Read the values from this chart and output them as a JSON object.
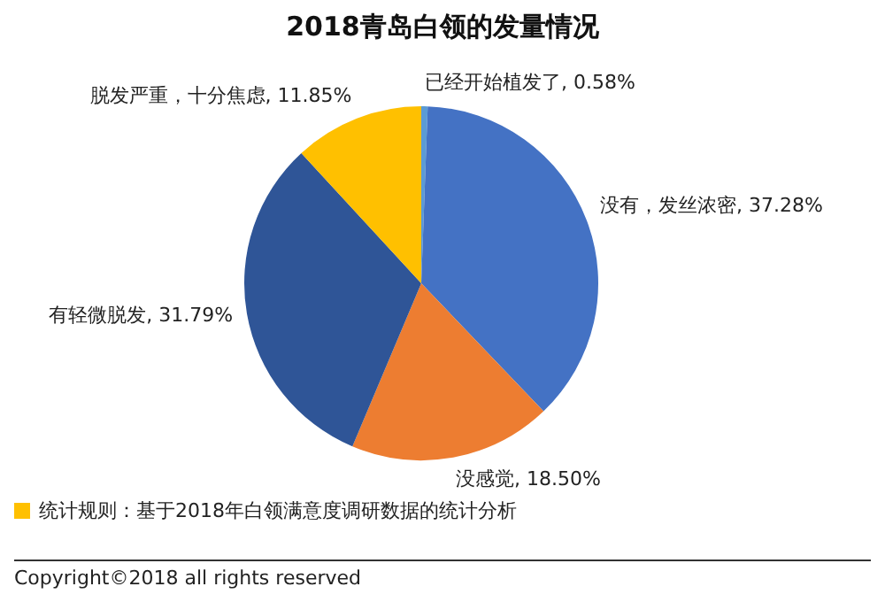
{
  "chart_data": {
    "type": "pie",
    "title": "2018青岛白领的发量情况",
    "categories": [
      "已经开始植发了",
      "没有，发丝浓密",
      "没感觉",
      "有轻微脱发",
      "脱发严重，十分焦虑"
    ],
    "values": [
      0.58,
      37.28,
      18.5,
      31.79,
      11.85
    ],
    "value_labels": [
      "0.58%",
      "37.28%",
      "18.50%",
      "31.79%",
      "11.85%"
    ],
    "colors": [
      "#5b9bd5",
      "#4472c4",
      "#ed7d31",
      "#2f5597",
      "#ffc000"
    ],
    "legend": false,
    "annotations": [
      "统计规则：基于2018年白领满意度调研数据的统计分析",
      "Copyright©2018 all rights reserved"
    ]
  }
}
